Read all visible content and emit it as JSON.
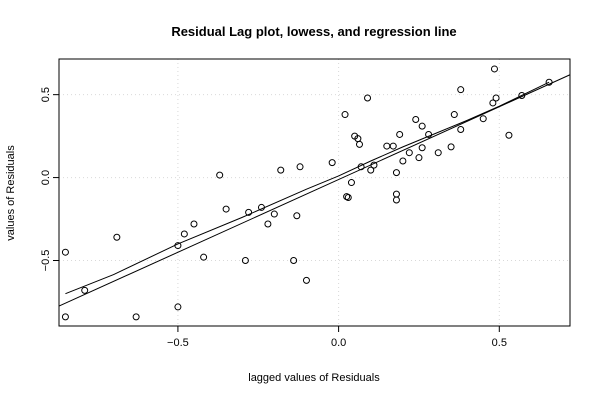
{
  "chart_data": {
    "type": "scatter",
    "title": "Residual Lag plot, lowess, and regression line",
    "xlabel": "lagged values of Residuals",
    "ylabel": "values of Residuals",
    "xlim": [
      -0.87,
      0.72
    ],
    "ylim": [
      -0.895,
      0.715
    ],
    "xticks": [
      -0.5,
      0.0,
      0.5
    ],
    "xtick_labels": [
      "−0.5",
      "0.0",
      "0.5"
    ],
    "yticks": [
      -0.5,
      0.0,
      0.5
    ],
    "ytick_labels": [
      "−0.5",
      "0.0",
      "0.5"
    ],
    "grid": true,
    "points": {
      "x": [
        -0.85,
        -0.85,
        -0.79,
        -0.69,
        -0.63,
        -0.5,
        -0.5,
        -0.48,
        -0.45,
        -0.42,
        -0.37,
        -0.35,
        -0.29,
        -0.28,
        -0.24,
        -0.22,
        -0.2,
        -0.18,
        -0.14,
        -0.13,
        -0.12,
        -0.1,
        -0.02,
        0.02,
        0.025,
        0.03,
        0.04,
        0.05,
        0.06,
        0.065,
        0.07,
        0.09,
        0.1,
        0.11,
        0.15,
        0.17,
        0.18,
        0.18,
        0.18,
        0.19,
        0.2,
        0.22,
        0.24,
        0.25,
        0.26,
        0.26,
        0.28,
        0.31,
        0.35,
        0.36,
        0.38,
        0.38,
        0.45,
        0.48,
        0.485,
        0.49,
        0.53,
        0.57,
        0.655
      ],
      "y": [
        -0.45,
        -0.84,
        -0.68,
        -0.36,
        -0.84,
        -0.41,
        -0.78,
        -0.34,
        -0.28,
        -0.48,
        0.015,
        -0.19,
        -0.5,
        -0.21,
        -0.18,
        -0.28,
        -0.22,
        0.045,
        -0.5,
        -0.23,
        0.065,
        -0.62,
        0.09,
        0.38,
        -0.115,
        -0.12,
        -0.03,
        0.25,
        0.235,
        0.2,
        0.065,
        0.48,
        0.045,
        0.075,
        0.19,
        0.19,
        -0.1,
        -0.135,
        0.03,
        0.26,
        0.1,
        0.15,
        0.35,
        0.12,
        0.18,
        0.31,
        0.26,
        0.15,
        0.185,
        0.38,
        0.29,
        0.53,
        0.355,
        0.45,
        0.655,
        0.48,
        0.255,
        0.495,
        0.575
      ]
    },
    "regression_line": {
      "x": [
        -0.87,
        0.72
      ],
      "y": [
        -0.775,
        0.62
      ]
    },
    "lowess": {
      "x": [
        -0.85,
        -0.7,
        -0.5,
        -0.3,
        -0.1,
        0.0,
        0.1,
        0.2,
        0.3,
        0.4,
        0.5,
        0.655
      ],
      "y": [
        -0.7,
        -0.585,
        -0.4,
        -0.24,
        -0.07,
        0.01,
        0.1,
        0.185,
        0.265,
        0.345,
        0.43,
        0.575
      ]
    }
  }
}
